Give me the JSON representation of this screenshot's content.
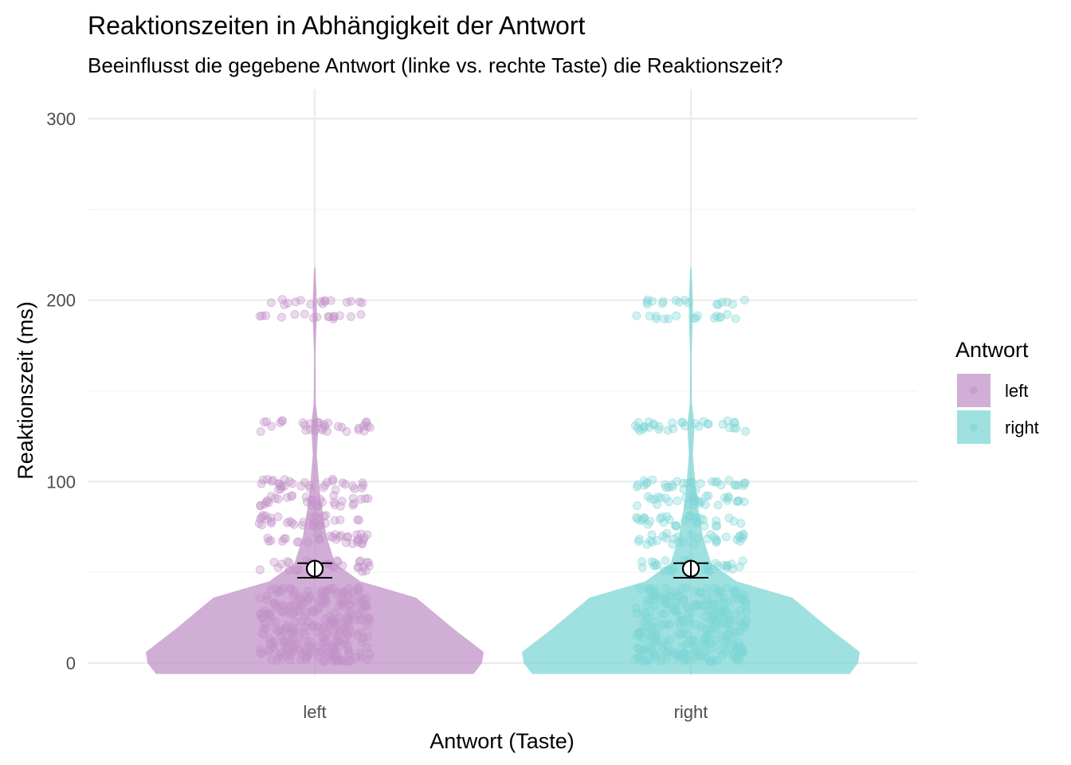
{
  "chart_data": {
    "type": "violin",
    "title": "Reaktionszeiten in Abhängigkeit der Antwort",
    "subtitle": "Beeinflusst die gegebene Antwort (linke vs. rechte Taste) die Reaktionszeit?",
    "xlabel": "Antwort (Taste)",
    "ylabel": "Reaktionszeit (ms)",
    "categories": [
      "left",
      "right"
    ],
    "y_ticks": [
      0,
      100,
      200,
      300
    ],
    "ylim": [
      -8,
      315
    ],
    "grid": true,
    "legend": {
      "title": "Antwort",
      "position": "right",
      "entries": [
        {
          "label": "left",
          "color": "#C293C8"
        },
        {
          "label": "right",
          "color": "#7FD6D6"
        }
      ]
    },
    "series": [
      {
        "name": "left",
        "color": "#C293C8",
        "mean": 52,
        "ci": [
          47,
          55
        ],
        "point_bands": [
          2,
          5,
          8,
          12,
          16,
          20,
          24,
          28,
          32,
          36,
          40,
          52,
          55,
          67,
          70,
          77,
          80,
          88,
          91,
          97,
          100,
          129,
          132,
          191,
          199
        ],
        "violin": [
          [
            -6,
            0.94
          ],
          [
            0,
            0.99
          ],
          [
            6,
            1.0
          ],
          [
            19,
            0.82
          ],
          [
            36,
            0.6
          ],
          [
            45,
            0.27
          ],
          [
            55,
            0.12
          ],
          [
            70,
            0.07
          ],
          [
            90,
            0.035
          ],
          [
            100,
            0.025
          ],
          [
            115,
            0.012
          ],
          [
            128,
            0.02
          ],
          [
            133,
            0.02
          ],
          [
            143,
            0.006
          ],
          [
            170,
            0.004
          ],
          [
            190,
            0.012
          ],
          [
            200,
            0.012
          ],
          [
            218,
            0.004
          ]
        ]
      },
      {
        "name": "right",
        "color": "#7FD6D6",
        "mean": 52,
        "ci": [
          47,
          55
        ],
        "point_bands": [
          2,
          5,
          8,
          12,
          16,
          20,
          24,
          28,
          32,
          36,
          40,
          52,
          55,
          67,
          70,
          77,
          80,
          88,
          91,
          97,
          100,
          129,
          132,
          191,
          199
        ],
        "violin": [
          [
            -6,
            0.94
          ],
          [
            0,
            0.99
          ],
          [
            6,
            1.0
          ],
          [
            19,
            0.82
          ],
          [
            36,
            0.6
          ],
          [
            45,
            0.27
          ],
          [
            55,
            0.12
          ],
          [
            70,
            0.07
          ],
          [
            90,
            0.035
          ],
          [
            100,
            0.025
          ],
          [
            115,
            0.012
          ],
          [
            128,
            0.02
          ],
          [
            133,
            0.02
          ],
          [
            143,
            0.006
          ],
          [
            170,
            0.004
          ],
          [
            190,
            0.012
          ],
          [
            200,
            0.012
          ],
          [
            218,
            0.004
          ]
        ]
      }
    ]
  }
}
